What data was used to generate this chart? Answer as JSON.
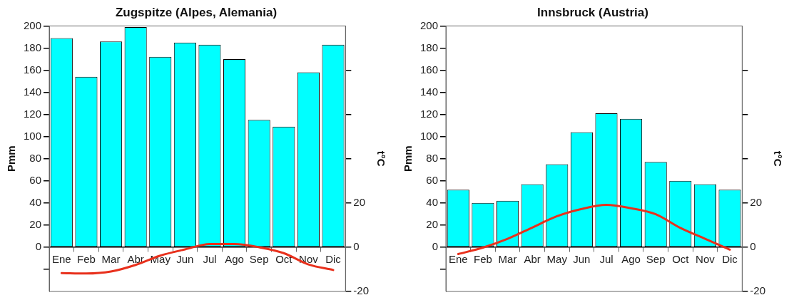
{
  "chart_data": [
    {
      "type": "bar",
      "title": "Zugspitze (Alpes, Alemania)",
      "categories": [
        "Ene",
        "Feb",
        "Mar",
        "Abr",
        "May",
        "Jun",
        "Jul",
        "Ago",
        "Sep",
        "Oct",
        "Nov",
        "Dic"
      ],
      "ylabel": "Pmm",
      "y2label": "t°C",
      "ylim": [
        -40,
        200
      ],
      "yticks": [
        {
          "value": -20,
          "label": null
        },
        0,
        20,
        40,
        60,
        80,
        100,
        120,
        140,
        160,
        180,
        200
      ],
      "y2lim": [
        -20,
        100
      ],
      "y2ticks": [
        -20,
        0,
        20,
        {
          "value": 40,
          "label": null
        },
        {
          "value": 60,
          "label": null
        },
        {
          "value": 80,
          "label": null
        }
      ],
      "marker": "none",
      "series": [
        {
          "type": "bar",
          "color": "#00ffff",
          "values": [
            189,
            154,
            186,
            199,
            172,
            185,
            183,
            170,
            115,
            109,
            158,
            183
          ]
        },
        {
          "type": "line",
          "axis": "y2",
          "color": "#e8301c",
          "values": [
            -11.7,
            -11.9,
            -11,
            -8,
            -3.8,
            -1,
            1.4,
            1.4,
            0,
            -2.7,
            -7.8,
            -10.3
          ]
        }
      ]
    },
    {
      "type": "bar",
      "title": "Innsbruck (Austria)",
      "categories": [
        "Ene",
        "Feb",
        "Mar",
        "Abr",
        "May",
        "Jun",
        "Jul",
        "Ago",
        "Sep",
        "Oct",
        "Nov",
        "Dic"
      ],
      "ylabel": "Pmm",
      "y2label": "t°C",
      "ylim": [
        -40,
        200
      ],
      "yticks": [
        {
          "value": -20,
          "label": null
        },
        0,
        20,
        40,
        60,
        80,
        100,
        120,
        140,
        160,
        180,
        200
      ],
      "y2lim": [
        -20,
        100
      ],
      "y2ticks": [
        -20,
        0,
        20,
        {
          "value": 40,
          "label": null
        },
        {
          "value": 60,
          "label": null
        },
        {
          "value": 80,
          "label": null
        }
      ],
      "marker": "none",
      "series": [
        {
          "type": "bar",
          "color": "#00ffff",
          "values": [
            52,
            40,
            42,
            57,
            75,
            104,
            121,
            116,
            77,
            60,
            57,
            52
          ]
        },
        {
          "type": "line",
          "axis": "y2",
          "color": "#e8301c",
          "values": [
            -3.1,
            -0.2,
            3.8,
            8.9,
            14,
            17.3,
            19.1,
            17.6,
            14.9,
            8.7,
            3.8,
            -1.1
          ]
        }
      ]
    }
  ]
}
